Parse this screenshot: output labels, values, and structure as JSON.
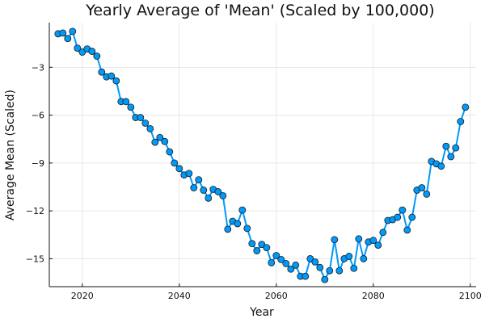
{
  "chart_data": {
    "type": "line",
    "title": "Yearly Average of 'Mean' (Scaled by 100,000)",
    "xlabel": "Year",
    "ylabel": "Average Mean (Scaled)",
    "xlim": [
      2013.2,
      2101.2
    ],
    "ylim": [
      -16.75,
      -0.2
    ],
    "xticks": [
      2020,
      2040,
      2060,
      2080,
      2100
    ],
    "yticks": [
      -15,
      -12,
      -9,
      -6,
      -3
    ],
    "ytick_labels": [
      "−15",
      "−12",
      "−9",
      "−6",
      "−3"
    ],
    "grid": true,
    "legend": "none",
    "colors": {
      "series": "#009AFA",
      "marker_edge": "#1a1a1a",
      "grid": "#e6e6e6",
      "axis": "#111111"
    },
    "series": [
      {
        "x": [
          2015,
          2016,
          2017,
          2018,
          2019,
          2020,
          2021,
          2022,
          2023,
          2024,
          2025,
          2026,
          2027,
          2028,
          2029,
          2030,
          2031,
          2032,
          2033,
          2034,
          2035,
          2036,
          2037,
          2038,
          2039,
          2040,
          2041,
          2042,
          2043,
          2044,
          2045,
          2046,
          2047,
          2048,
          2049,
          2050,
          2051,
          2052,
          2053,
          2054,
          2055,
          2056,
          2057,
          2058,
          2059,
          2060,
          2061,
          2062,
          2063,
          2064,
          2065,
          2066,
          2067,
          2068,
          2069,
          2070,
          2071,
          2072,
          2073,
          2074,
          2075,
          2076,
          2077,
          2078,
          2079,
          2080,
          2081,
          2082,
          2083,
          2084,
          2085,
          2086,
          2087,
          2088,
          2089,
          2090,
          2091,
          2092,
          2093,
          2094,
          2095,
          2096,
          2097,
          2098,
          2099
        ],
        "y": [
          -0.9,
          -0.85,
          -1.2,
          -0.75,
          -1.8,
          -2.05,
          -1.85,
          -2.0,
          -2.3,
          -3.3,
          -3.6,
          -3.55,
          -3.85,
          -5.15,
          -5.15,
          -5.5,
          -6.15,
          -6.15,
          -6.5,
          -6.85,
          -7.7,
          -7.4,
          -7.65,
          -8.3,
          -9.0,
          -9.35,
          -9.75,
          -9.65,
          -10.55,
          -10.05,
          -10.7,
          -11.2,
          -10.65,
          -10.8,
          -11.05,
          -13.15,
          -12.65,
          -12.8,
          -11.95,
          -13.1,
          -14.05,
          -14.5,
          -14.1,
          -14.3,
          -15.25,
          -14.8,
          -15.05,
          -15.3,
          -15.65,
          -15.4,
          -16.1,
          -16.1,
          -15.0,
          -15.2,
          -15.55,
          -16.3,
          -15.75,
          -13.8,
          -15.75,
          -15.0,
          -14.85,
          -15.6,
          -13.75,
          -15.0,
          -13.95,
          -13.85,
          -14.15,
          -13.35,
          -12.6,
          -12.55,
          -12.4,
          -11.95,
          -13.2,
          -12.4,
          -10.7,
          -10.55,
          -10.95,
          -8.9,
          -9.05,
          -9.2,
          -7.95,
          -8.6,
          -8.05,
          -6.4,
          -5.5
        ]
      }
    ]
  }
}
